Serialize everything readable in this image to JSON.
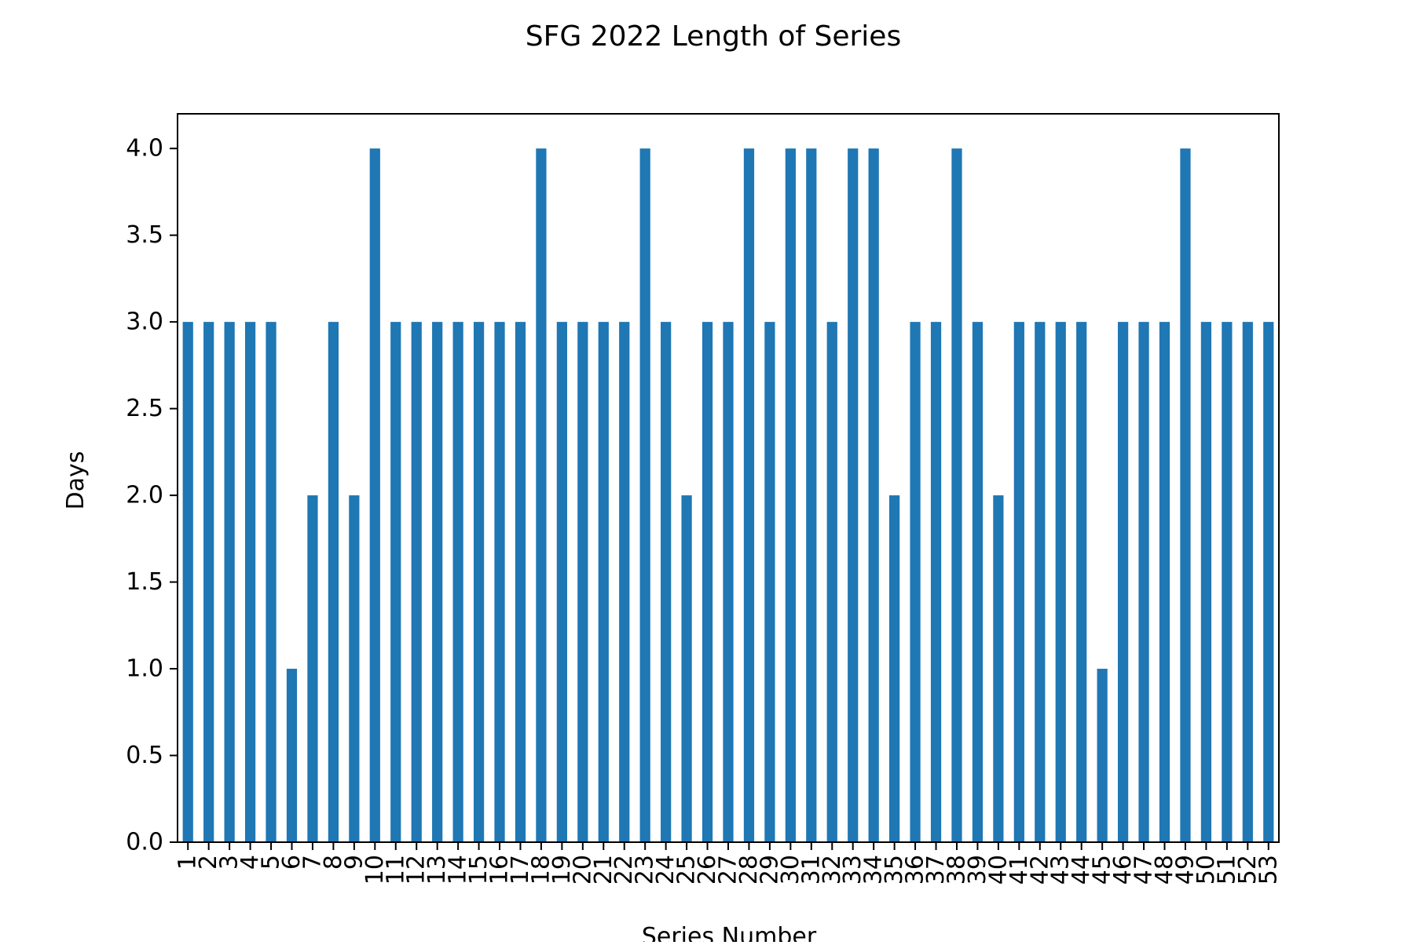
{
  "chart_data": {
    "type": "bar",
    "title": "SFG 2022 Length of Series",
    "xlabel": "Series Number",
    "ylabel": "Days",
    "categories": [
      "1",
      "2",
      "3",
      "4",
      "5",
      "6",
      "7",
      "8",
      "9",
      "10",
      "11",
      "12",
      "13",
      "14",
      "15",
      "16",
      "17",
      "18",
      "19",
      "20",
      "21",
      "22",
      "23",
      "24",
      "25",
      "26",
      "27",
      "28",
      "29",
      "30",
      "31",
      "32",
      "33",
      "34",
      "35",
      "36",
      "37",
      "38",
      "39",
      "40",
      "41",
      "42",
      "43",
      "44",
      "45",
      "46",
      "47",
      "48",
      "49",
      "50",
      "51",
      "52",
      "53"
    ],
    "values": [
      3,
      3,
      3,
      3,
      3,
      1,
      2,
      3,
      2,
      4,
      3,
      3,
      3,
      3,
      3,
      3,
      3,
      4,
      3,
      3,
      3,
      3,
      4,
      3,
      2,
      3,
      3,
      4,
      3,
      4,
      4,
      3,
      4,
      4,
      2,
      3,
      3,
      4,
      3,
      2,
      3,
      3,
      3,
      3,
      1,
      3,
      3,
      3,
      4,
      3,
      3,
      3,
      3
    ],
    "ylim": [
      0,
      4.2
    ],
    "yticks": [
      0.0,
      0.5,
      1.0,
      1.5,
      2.0,
      2.5,
      3.0,
      3.5,
      4.0
    ],
    "ytick_labels": [
      "0.0",
      "0.5",
      "1.0",
      "1.5",
      "2.0",
      "2.5",
      "3.0",
      "3.5",
      "4.0"
    ],
    "bar_color": "#1f77b4",
    "grid": false,
    "legend": false,
    "xtick_rotation": "vertical"
  }
}
